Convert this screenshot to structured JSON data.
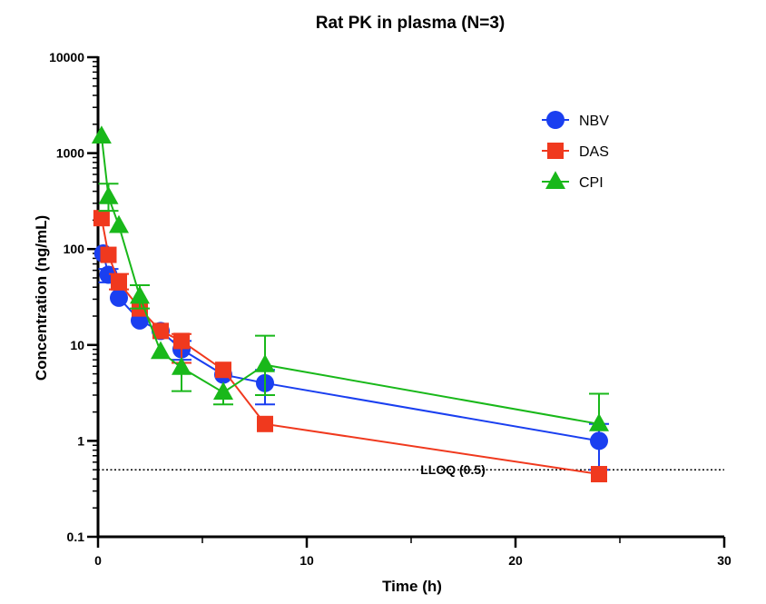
{
  "chart_data": {
    "type": "scatter",
    "title": "Rat PK in plasma (N=3)",
    "xlabel": "Time (h)",
    "ylabel": "Concentration (ng/mL)",
    "xlim": [
      0,
      30
    ],
    "ylim": [
      0.1,
      10000
    ],
    "yscale": "log",
    "x_ticks": [
      0,
      10,
      20,
      30
    ],
    "x_tick_labels": [
      "0",
      "10",
      "20",
      "30"
    ],
    "y_ticks": [
      0.1,
      1,
      10,
      100,
      1000,
      10000
    ],
    "y_tick_labels": [
      "0.1",
      "1",
      "10",
      "100",
      "1000",
      "10000"
    ],
    "legend_position": "top-right",
    "grid": false,
    "lloq": {
      "value": 0.5,
      "label": "LLOQ (0.5)"
    },
    "series": [
      {
        "name": "NBV",
        "color": "#1a3ff0",
        "marker": "circle",
        "x": [
          0.25,
          0.5,
          1,
          2,
          3,
          4,
          6,
          8,
          24
        ],
        "y": [
          90,
          54,
          31,
          18,
          14,
          9,
          4.9,
          4,
          1
        ],
        "err_hi": [
          null,
          62,
          null,
          null,
          null,
          11,
          null,
          5.5,
          1.5
        ],
        "err_lo": [
          null,
          45,
          null,
          null,
          null,
          7,
          null,
          2.4,
          0.5
        ]
      },
      {
        "name": "DAS",
        "color": "#f0391e",
        "marker": "square",
        "x": [
          0.17,
          0.5,
          1,
          2,
          3,
          4,
          6,
          8,
          24
        ],
        "y": [
          210,
          87,
          45,
          24,
          14,
          11,
          5.5,
          1.5,
          0.45
        ],
        "err_hi": [
          null,
          null,
          55,
          null,
          null,
          13,
          null,
          null,
          null
        ],
        "err_lo": [
          null,
          null,
          38,
          null,
          null,
          6.5,
          null,
          null,
          null
        ]
      },
      {
        "name": "CPI",
        "color": "#19b81a",
        "marker": "triangle",
        "x": [
          0.17,
          0.5,
          1,
          2,
          3,
          4,
          6,
          8,
          24
        ],
        "y": [
          1500,
          350,
          175,
          32,
          8.5,
          5.8,
          3.2,
          6.2,
          1.5
        ],
        "err_hi": [
          null,
          480,
          null,
          42,
          null,
          null,
          null,
          12.5,
          3.1
        ],
        "err_lo": [
          null,
          250,
          null,
          24,
          null,
          3.3,
          2.4,
          3,
          null
        ]
      }
    ]
  }
}
